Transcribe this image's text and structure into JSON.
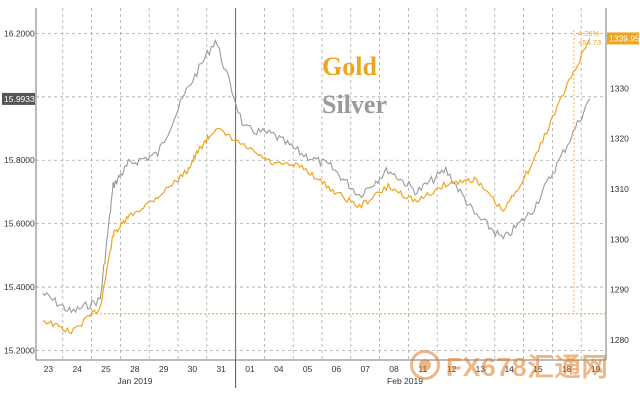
{
  "chart_data": {
    "type": "line",
    "legend": {
      "gold": "Gold",
      "silver": "Silver",
      "placement": "top-center"
    },
    "colors": {
      "gold": "#f0a41c",
      "silver": "#9a9a9a",
      "ref_line": "#f0a41c",
      "grid": "#999999",
      "last_tag_bg": "#f0a41c"
    },
    "left_axis": {
      "ticks": [
        "15.2000",
        "15.4000",
        "15.6000",
        "15.8000",
        "16.0000",
        "16.2000"
      ],
      "range": [
        15.17,
        16.28
      ]
    },
    "right_axis": {
      "ticks": [
        "1280",
        "1290",
        "1300",
        "1310",
        "1320",
        "1330",
        "1340"
      ],
      "range": [
        1276,
        1346
      ]
    },
    "silver_last_value": "15.9933",
    "gold_last_value": "1339.95",
    "gold_annotation": {
      "pct": "4.26%",
      "change": "+54.73"
    },
    "reference_line_value": 1285.2,
    "x_ticks": [
      "23",
      "24",
      "25",
      "28",
      "29",
      "30",
      "31",
      "01",
      "04",
      "05",
      "06",
      "07",
      "08",
      "11",
      "12",
      "13",
      "14",
      "15",
      "18",
      "19"
    ],
    "month_labels": [
      "Jan 2019",
      "Feb 2019"
    ],
    "gold_points": [
      [
        "23",
        1284.0
      ],
      [
        "24",
        1281.5
      ],
      [
        "25",
        1286.5
      ],
      [
        "25",
        1301.0
      ],
      [
        "28",
        1304.5
      ],
      [
        "29",
        1308.5
      ],
      [
        "30",
        1313.5
      ],
      [
        "30",
        1318.0
      ],
      [
        "31",
        1322.0
      ],
      [
        "01",
        1318.5
      ],
      [
        "04",
        1315.0
      ],
      [
        "05",
        1314.5
      ],
      [
        "06",
        1310.0
      ],
      [
        "07",
        1306.5
      ],
      [
        "08",
        1310.5
      ],
      [
        "11",
        1307.5
      ],
      [
        "12",
        1311.0
      ],
      [
        "13",
        1312.0
      ],
      [
        "14",
        1305.5
      ],
      [
        "15",
        1315.0
      ],
      [
        "18",
        1328.0
      ],
      [
        "19",
        1339.95
      ]
    ],
    "silver_points": [
      [
        "23",
        15.38
      ],
      [
        "24",
        15.32
      ],
      [
        "25",
        15.36
      ],
      [
        "25",
        15.72
      ],
      [
        "28",
        15.79
      ],
      [
        "29",
        15.82
      ],
      [
        "30",
        16.02
      ],
      [
        "31",
        16.18
      ],
      [
        "01",
        15.9
      ],
      [
        "04",
        15.88
      ],
      [
        "05",
        15.82
      ],
      [
        "06",
        15.78
      ],
      [
        "07",
        15.69
      ],
      [
        "08",
        15.77
      ],
      [
        "11",
        15.7
      ],
      [
        "12",
        15.77
      ],
      [
        "13",
        15.63
      ],
      [
        "14",
        15.55
      ],
      [
        "15",
        15.64
      ],
      [
        "18",
        15.81
      ],
      [
        "19",
        15.9933
      ]
    ]
  },
  "watermark": {
    "text": "FX678汇通网"
  }
}
